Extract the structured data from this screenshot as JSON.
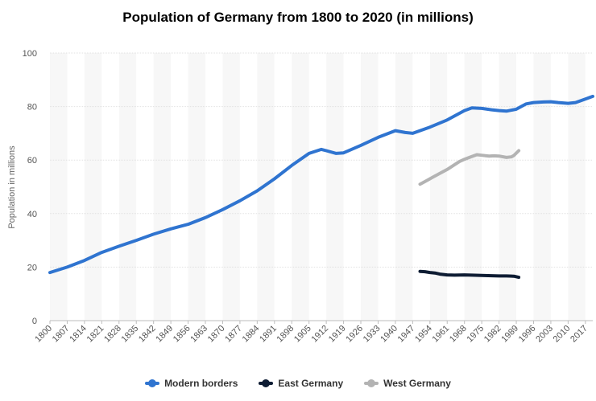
{
  "chart_data": {
    "type": "line",
    "title": "Population of Germany from 1800 to 2020 (in millions)",
    "ylabel": "Population in millions",
    "xlim": [
      1800,
      2020
    ],
    "ylim": [
      0,
      100
    ],
    "y_ticks": [
      0,
      20,
      40,
      60,
      80,
      100
    ],
    "x_ticks": [
      1800,
      1807,
      1814,
      1821,
      1828,
      1835,
      1842,
      1849,
      1856,
      1863,
      1870,
      1877,
      1884,
      1891,
      1898,
      1905,
      1912,
      1919,
      1926,
      1933,
      1940,
      1947,
      1954,
      1961,
      1968,
      1975,
      1982,
      1989,
      1996,
      2003,
      2010,
      2017
    ],
    "legend_position": "bottom",
    "grid": true,
    "series": [
      {
        "name": "Modern borders",
        "color": "#2f74d0",
        "points": [
          [
            1800,
            18.0
          ],
          [
            1807,
            20.0
          ],
          [
            1814,
            22.5
          ],
          [
            1821,
            25.5
          ],
          [
            1828,
            27.8
          ],
          [
            1835,
            30.0
          ],
          [
            1842,
            32.3
          ],
          [
            1849,
            34.3
          ],
          [
            1856,
            36.0
          ],
          [
            1863,
            38.5
          ],
          [
            1870,
            41.5
          ],
          [
            1877,
            44.8
          ],
          [
            1884,
            48.5
          ],
          [
            1891,
            53.0
          ],
          [
            1898,
            58.0
          ],
          [
            1905,
            62.5
          ],
          [
            1910,
            64.0
          ],
          [
            1912,
            63.5
          ],
          [
            1916,
            62.5
          ],
          [
            1919,
            62.7
          ],
          [
            1926,
            65.5
          ],
          [
            1933,
            68.5
          ],
          [
            1940,
            71.0
          ],
          [
            1944,
            70.3
          ],
          [
            1947,
            70.0
          ],
          [
            1950,
            71.0
          ],
          [
            1954,
            72.3
          ],
          [
            1961,
            75.0
          ],
          [
            1968,
            78.5
          ],
          [
            1971,
            79.5
          ],
          [
            1975,
            79.3
          ],
          [
            1979,
            78.8
          ],
          [
            1982,
            78.5
          ],
          [
            1985,
            78.3
          ],
          [
            1989,
            79.0
          ],
          [
            1993,
            81.0
          ],
          [
            1996,
            81.5
          ],
          [
            2000,
            81.7
          ],
          [
            2003,
            81.8
          ],
          [
            2006,
            81.5
          ],
          [
            2010,
            81.2
          ],
          [
            2013,
            81.5
          ],
          [
            2017,
            82.8
          ],
          [
            2020,
            83.8
          ]
        ]
      },
      {
        "name": "East Germany",
        "color": "#0e1c33",
        "points": [
          [
            1950,
            18.4
          ],
          [
            1952,
            18.3
          ],
          [
            1954,
            18.0
          ],
          [
            1956,
            17.8
          ],
          [
            1958,
            17.4
          ],
          [
            1961,
            17.1
          ],
          [
            1964,
            17.0
          ],
          [
            1968,
            17.1
          ],
          [
            1971,
            17.0
          ],
          [
            1975,
            16.9
          ],
          [
            1979,
            16.8
          ],
          [
            1982,
            16.7
          ],
          [
            1985,
            16.7
          ],
          [
            1988,
            16.6
          ],
          [
            1990,
            16.2
          ]
        ]
      },
      {
        "name": "West Germany",
        "color": "#b3b3b3",
        "points": [
          [
            1950,
            51.0
          ],
          [
            1953,
            52.5
          ],
          [
            1955,
            53.5
          ],
          [
            1958,
            55.0
          ],
          [
            1961,
            56.5
          ],
          [
            1964,
            58.3
          ],
          [
            1966,
            59.5
          ],
          [
            1968,
            60.3
          ],
          [
            1970,
            61.0
          ],
          [
            1973,
            62.0
          ],
          [
            1975,
            61.8
          ],
          [
            1978,
            61.5
          ],
          [
            1980,
            61.6
          ],
          [
            1982,
            61.5
          ],
          [
            1985,
            61.0
          ],
          [
            1987,
            61.2
          ],
          [
            1988,
            61.7
          ],
          [
            1990,
            63.5
          ]
        ]
      }
    ]
  }
}
